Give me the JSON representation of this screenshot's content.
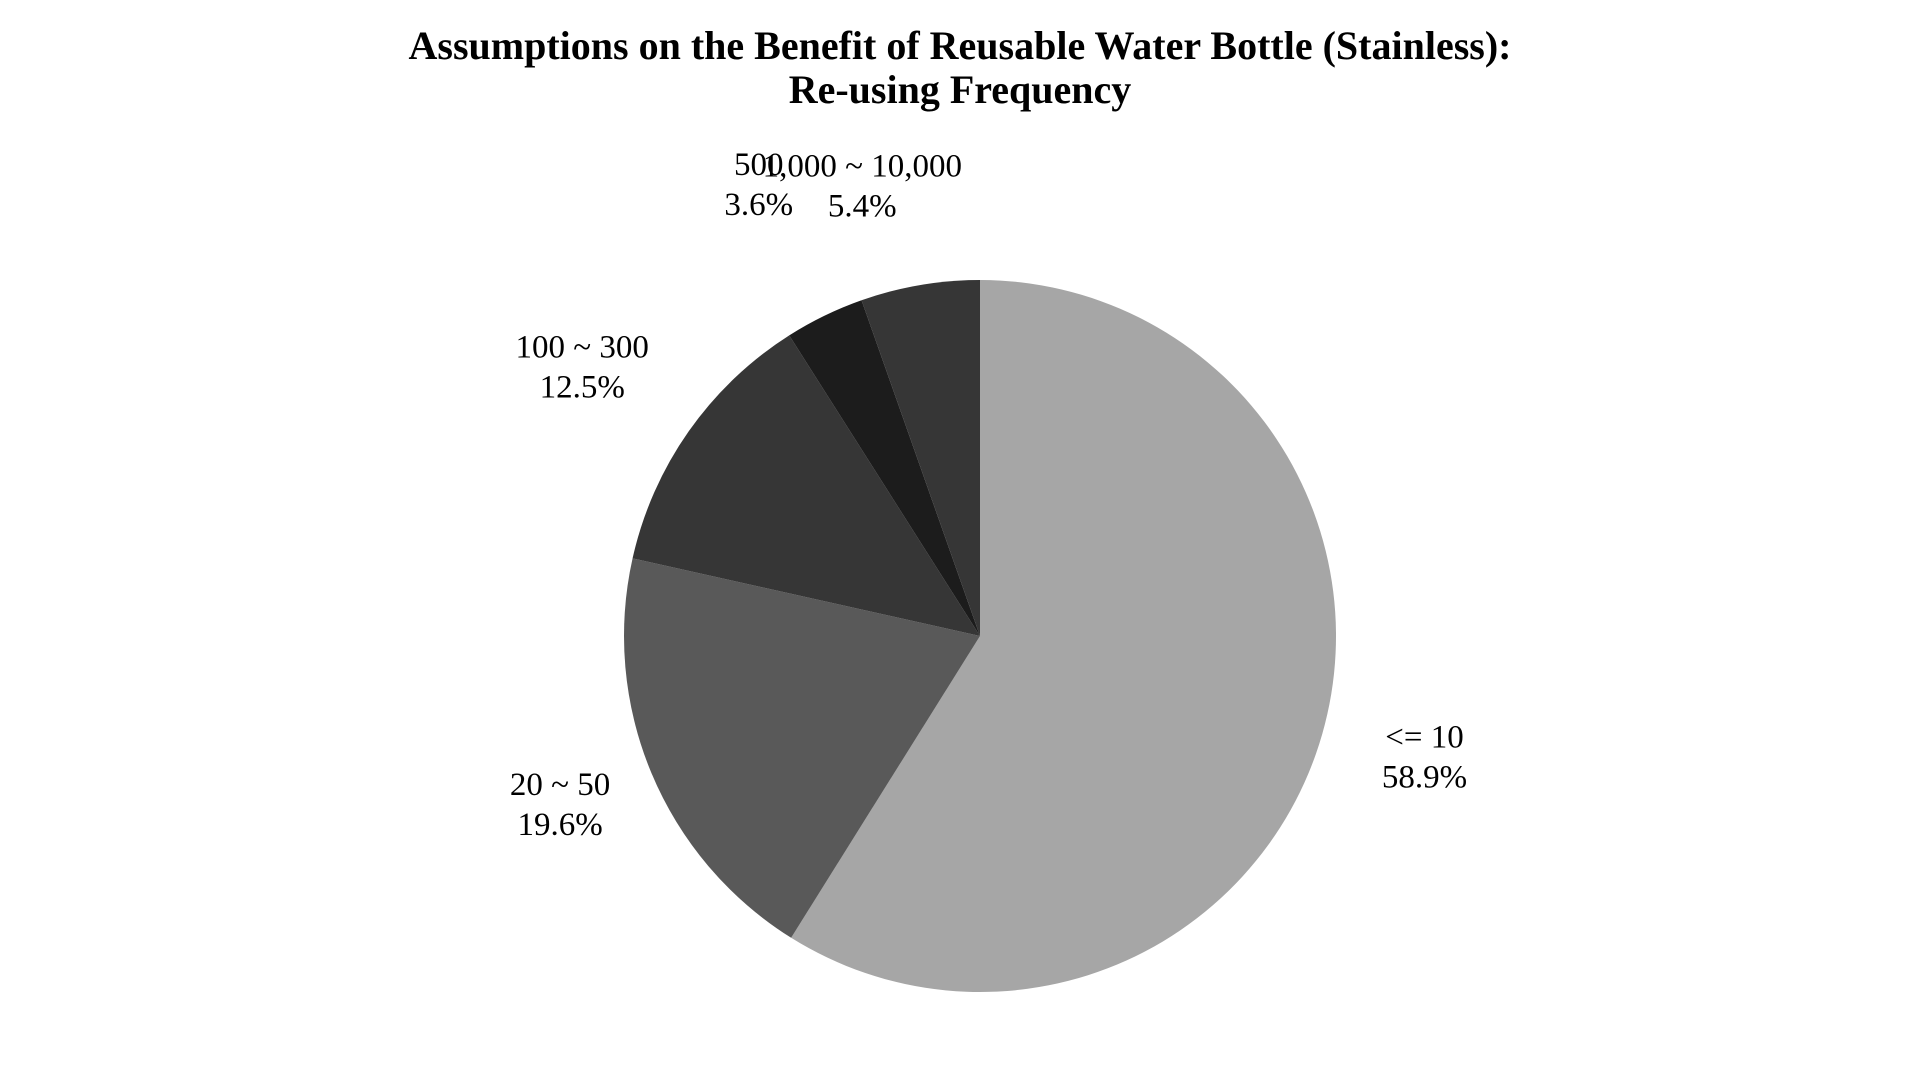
{
  "chart_data": {
    "type": "pie",
    "title": "Assumptions on the Benefit of Reusable Water Bottle (Stainless):",
    "subtitle": "Re-using Frequency",
    "categories": [
      "<= 10",
      "20 ~ 50",
      "100 ~ 300",
      "500",
      "1,000 ~ 10,000"
    ],
    "values": [
      58.9,
      19.6,
      12.5,
      3.6,
      5.4
    ],
    "value_labels": [
      "58.9%",
      "19.6%",
      "12.5%",
      "3.6%",
      "5.4%"
    ],
    "colors": [
      "#a6a6a6",
      "#595959",
      "#363636",
      "#1c1c1c",
      "#363636"
    ],
    "start": "12 o'clock",
    "direction": "clockwise",
    "legend": "none",
    "labels_position": "outside"
  }
}
